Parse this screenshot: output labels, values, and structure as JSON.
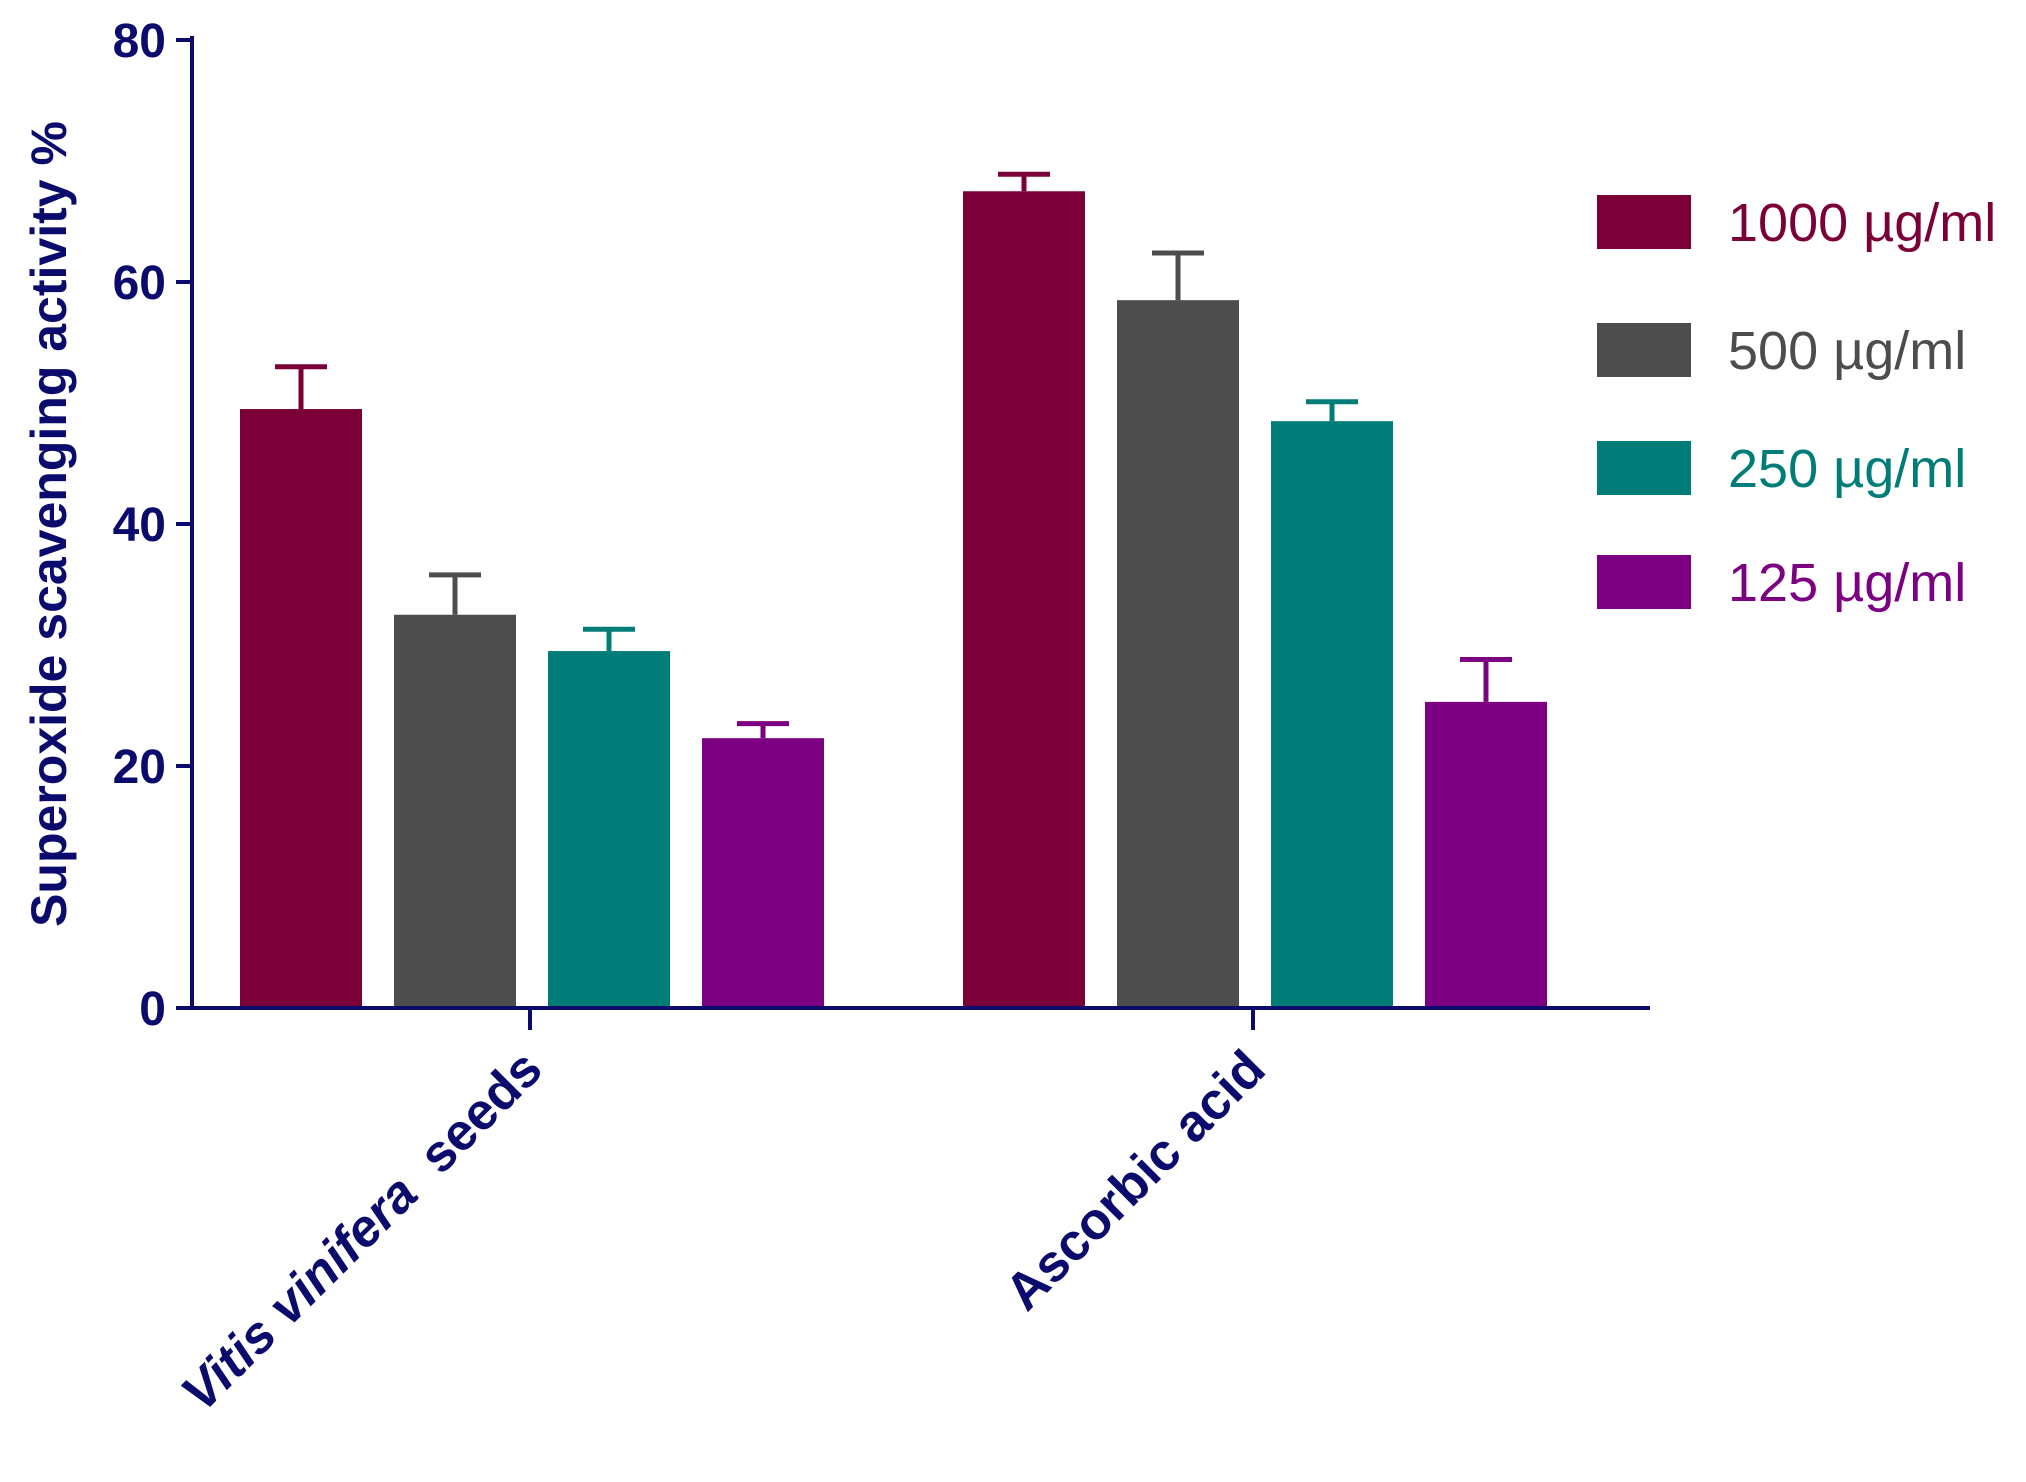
{
  "chart_data": {
    "type": "bar",
    "title": "",
    "xlabel": "",
    "ylabel": "Superoxide scavenging activity %",
    "ylim": [
      0,
      80
    ],
    "yticks": [
      0,
      20,
      40,
      60,
      80
    ],
    "categories": [
      {
        "parts": [
          {
            "text": "Vitis vinifera",
            "italic": true
          },
          {
            "text": "  seeds",
            "italic": false
          }
        ]
      },
      {
        "parts": [
          {
            "text": "Ascorbic acid",
            "italic": false
          }
        ]
      }
    ],
    "category_labels": [
      "Vitis vinifera  seeds",
      "Ascorbic acid"
    ],
    "series": [
      {
        "name": "1000 µg/ml",
        "color": "#7b0038",
        "values": [
          49.5,
          67.5
        ],
        "errors": [
          3.5,
          1.4
        ]
      },
      {
        "name": "500 µg/ml",
        "color": "#4d4d4d",
        "values": [
          32.5,
          58.5
        ],
        "errors": [
          3.3,
          3.9
        ]
      },
      {
        "name": "250 µg/ml",
        "color": "#007d79",
        "values": [
          29.5,
          48.5
        ],
        "errors": [
          1.8,
          1.6
        ]
      },
      {
        "name": "125 µg/ml",
        "color": "#7b0082",
        "values": [
          22.3,
          25.3
        ],
        "errors": [
          1.2,
          3.5
        ]
      }
    ],
    "grid": false,
    "legend_position": "right",
    "axis_color": "#0b0b6e",
    "error_bars": "positive"
  }
}
